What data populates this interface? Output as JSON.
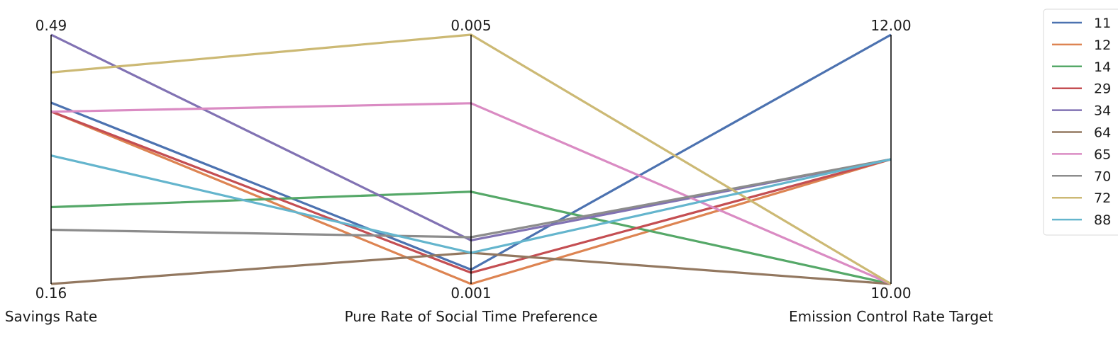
{
  "chart_data": {
    "type": "parallel_coordinates",
    "axes": [
      {
        "label": "Savings Rate",
        "min": 0.16,
        "max": 0.49,
        "min_label": "0.16",
        "max_label": "0.49"
      },
      {
        "label": "Pure Rate of Social Time Preference",
        "min": 0.001,
        "max": 0.005,
        "min_label": "0.001",
        "max_label": "0.005"
      },
      {
        "label": "Emission Control Rate Target",
        "min": 10.0,
        "max": 12.0,
        "min_label": "10.00",
        "max_label": "12.00"
      }
    ],
    "series": [
      {
        "name": "11",
        "color": "#4c72b0",
        "values": [
          0.4,
          0.00123,
          12.0
        ]
      },
      {
        "name": "12",
        "color": "#dd8452",
        "values": [
          0.3883,
          0.001,
          11.0
        ]
      },
      {
        "name": "14",
        "color": "#55a868",
        "values": [
          0.2617,
          0.00248,
          10.0
        ]
      },
      {
        "name": "29",
        "color": "#c44e52",
        "values": [
          0.3883,
          0.00118,
          11.0
        ]
      },
      {
        "name": "34",
        "color": "#8172b3",
        "values": [
          0.49,
          0.0017,
          11.0
        ]
      },
      {
        "name": "64",
        "color": "#937860",
        "values": [
          0.16,
          0.0015,
          10.0
        ]
      },
      {
        "name": "65",
        "color": "#da8bc3",
        "values": [
          0.388,
          0.0039,
          10.0
        ]
      },
      {
        "name": "70",
        "color": "#8c8c8c",
        "values": [
          0.2317,
          0.00175,
          11.0
        ]
      },
      {
        "name": "72",
        "color": "#ccb974",
        "values": [
          0.44,
          0.005,
          10.0
        ]
      },
      {
        "name": "88",
        "color": "#64b5cd",
        "values": [
          0.33,
          0.0015,
          11.0
        ]
      }
    ],
    "legend_position": "top-right",
    "grid": false
  }
}
